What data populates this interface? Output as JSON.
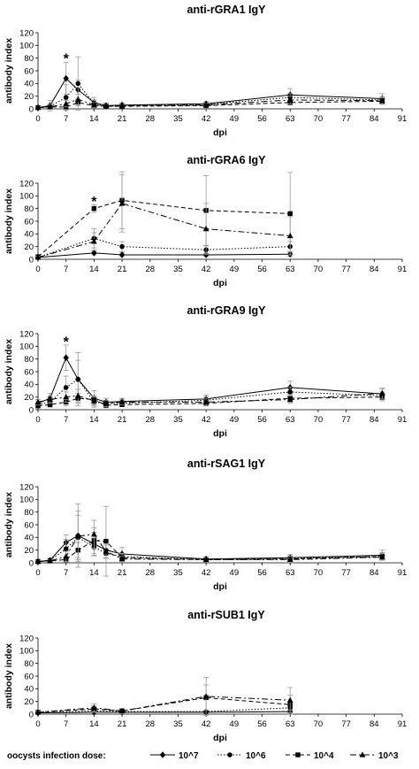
{
  "chart_data": [
    {
      "type": "line",
      "title": "anti-rGRA1 IgY",
      "xlabel": "dpi",
      "ylabel": "antibody index",
      "xlim": [
        0,
        91
      ],
      "ylim": [
        0,
        120
      ],
      "xticks": [
        0,
        7,
        14,
        21,
        28,
        35,
        42,
        49,
        56,
        63,
        70,
        77,
        84,
        91
      ],
      "yticks": [
        0,
        20,
        40,
        60,
        80,
        100,
        120
      ],
      "xtick_labels": [
        "0",
        "7",
        "14",
        "21",
        "28",
        "35",
        "42",
        "49",
        "56",
        "63",
        "70",
        "77",
        "84",
        "91"
      ],
      "ytick_labels": [
        "0",
        "20",
        "40",
        "60",
        "80",
        "100",
        "120"
      ],
      "annotations": [
        {
          "text": "*",
          "x": 7,
          "y": 80
        }
      ],
      "series": [
        {
          "name": "10^7",
          "marker": "diamond",
          "dash": "solid",
          "x": [
            0,
            3,
            7,
            10,
            14,
            17,
            21,
            42,
            63,
            86
          ],
          "y": [
            2,
            5,
            48,
            30,
            10,
            5,
            6,
            8,
            22,
            16
          ],
          "err": [
            2,
            8,
            25,
            15,
            8,
            4,
            3,
            3,
            10,
            8
          ]
        },
        {
          "name": "10^6",
          "marker": "circle",
          "dash": "dotted",
          "x": [
            0,
            3,
            7,
            10,
            14,
            17,
            21,
            42,
            63,
            86
          ],
          "y": [
            2,
            4,
            18,
            40,
            8,
            4,
            5,
            7,
            18,
            14
          ],
          "err": [
            2,
            4,
            20,
            42,
            6,
            3,
            3,
            3,
            6,
            5
          ]
        },
        {
          "name": "10^4",
          "marker": "square",
          "dash": "dashed",
          "x": [
            0,
            3,
            7,
            10,
            14,
            17,
            21,
            42,
            63,
            86
          ],
          "y": [
            2,
            3,
            3,
            10,
            5,
            4,
            4,
            5,
            10,
            12
          ],
          "err": [
            1,
            2,
            2,
            5,
            3,
            2,
            2,
            2,
            4,
            5
          ]
        },
        {
          "name": "10^3",
          "marker": "triangle",
          "dash": "dashdot",
          "x": [
            0,
            3,
            7,
            10,
            14,
            17,
            21,
            42,
            63,
            86
          ],
          "y": [
            2,
            3,
            8,
            15,
            6,
            5,
            5,
            6,
            14,
            13
          ],
          "err": [
            1,
            3,
            5,
            8,
            4,
            3,
            2,
            3,
            6,
            5
          ]
        }
      ]
    },
    {
      "type": "line",
      "title": "anti-rGRA6 IgY",
      "xlabel": "dpi",
      "ylabel": "antibody index",
      "xlim": [
        0,
        91
      ],
      "ylim": [
        0,
        120
      ],
      "xticks": [
        0,
        7,
        14,
        21,
        28,
        35,
        42,
        49,
        56,
        63,
        70,
        77,
        84,
        91
      ],
      "yticks": [
        0,
        20,
        40,
        60,
        80,
        100,
        120
      ],
      "xtick_labels": [
        "0",
        "7",
        "14",
        "21",
        "28",
        "35",
        "42",
        "49",
        "56",
        "63",
        "70",
        "77",
        "84",
        "91"
      ],
      "ytick_labels": [
        "0",
        "20",
        "40",
        "60",
        "80",
        "100",
        "120"
      ],
      "annotations": [
        {
          "text": "*",
          "x": 14,
          "y": 92
        }
      ],
      "series": [
        {
          "name": "10^7",
          "marker": "diamond",
          "dash": "solid",
          "x": [
            0,
            14,
            21,
            42,
            63
          ],
          "y": [
            3,
            10,
            7,
            7,
            8
          ],
          "err": [
            2,
            3,
            3,
            2,
            3
          ]
        },
        {
          "name": "10^6",
          "marker": "circle",
          "dash": "dotted",
          "x": [
            0,
            14,
            21,
            42,
            63
          ],
          "y": [
            3,
            33,
            20,
            15,
            20
          ],
          "err": [
            2,
            15,
            8,
            6,
            8
          ]
        },
        {
          "name": "10^4",
          "marker": "square",
          "dash": "dashed",
          "x": [
            0,
            14,
            21,
            42,
            63
          ],
          "y": [
            4,
            80,
            93,
            77,
            72
          ],
          "err": [
            2,
            6,
            45,
            55,
            65
          ]
        },
        {
          "name": "10^3",
          "marker": "triangle",
          "dash": "dashdot",
          "x": [
            0,
            14,
            21,
            42,
            63
          ],
          "y": [
            3,
            28,
            88,
            48,
            37
          ],
          "err": [
            2,
            14,
            45,
            40,
            30
          ]
        }
      ]
    },
    {
      "type": "line",
      "title": "anti-rGRA9 IgY",
      "xlabel": "dpi",
      "ylabel": "antibody index",
      "xlim": [
        0,
        91
      ],
      "ylim": [
        0,
        120
      ],
      "xticks": [
        0,
        7,
        14,
        21,
        28,
        35,
        42,
        49,
        56,
        63,
        70,
        77,
        84,
        91
      ],
      "yticks": [
        0,
        20,
        40,
        60,
        80,
        100,
        120
      ],
      "xtick_labels": [
        "0",
        "7",
        "14",
        "21",
        "28",
        "35",
        "42",
        "49",
        "56",
        "63",
        "70",
        "77",
        "84",
        "91"
      ],
      "ytick_labels": [
        "0",
        "20",
        "40",
        "60",
        "80",
        "100",
        "120"
      ],
      "annotations": [
        {
          "text": "*",
          "x": 7,
          "y": 108
        }
      ],
      "series": [
        {
          "name": "10^7",
          "marker": "diamond",
          "dash": "solid",
          "x": [
            0,
            3,
            7,
            10,
            14,
            17,
            21,
            42,
            63,
            86
          ],
          "y": [
            10,
            18,
            82,
            48,
            18,
            12,
            13,
            17,
            35,
            25
          ],
          "err": [
            4,
            8,
            20,
            42,
            12,
            6,
            5,
            6,
            10,
            8
          ]
        },
        {
          "name": "10^6",
          "marker": "circle",
          "dash": "dotted",
          "x": [
            0,
            3,
            7,
            10,
            14,
            17,
            21,
            42,
            63,
            86
          ],
          "y": [
            8,
            12,
            35,
            48,
            12,
            10,
            10,
            15,
            28,
            22
          ],
          "err": [
            3,
            6,
            18,
            30,
            8,
            5,
            4,
            5,
            8,
            6
          ]
        },
        {
          "name": "10^4",
          "marker": "square",
          "dash": "dashed",
          "x": [
            0,
            3,
            7,
            10,
            14,
            17,
            21,
            42,
            63,
            86
          ],
          "y": [
            6,
            8,
            12,
            18,
            16,
            7,
            8,
            10,
            18,
            20
          ],
          "err": [
            3,
            4,
            6,
            8,
            6,
            4,
            3,
            4,
            6,
            6
          ]
        },
        {
          "name": "10^3",
          "marker": "triangle",
          "dash": "dashdot",
          "x": [
            0,
            3,
            7,
            10,
            14,
            17,
            21,
            42,
            63,
            86
          ],
          "y": [
            12,
            16,
            20,
            22,
            14,
            10,
            12,
            12,
            16,
            26
          ],
          "err": [
            4,
            6,
            8,
            10,
            6,
            5,
            4,
            5,
            6,
            8
          ]
        }
      ]
    },
    {
      "type": "line",
      "title": "anti-rSAG1 IgY",
      "xlabel": "dpi",
      "ylabel": "antibody index",
      "xlim": [
        0,
        91
      ],
      "ylim": [
        0,
        120
      ],
      "xticks": [
        0,
        7,
        14,
        21,
        28,
        35,
        42,
        49,
        56,
        63,
        70,
        77,
        84,
        91
      ],
      "yticks": [
        0,
        20,
        40,
        60,
        80,
        100,
        120
      ],
      "xtick_labels": [
        "0",
        "7",
        "14",
        "21",
        "28",
        "35",
        "42",
        "49",
        "56",
        "63",
        "70",
        "77",
        "84",
        "91"
      ],
      "ytick_labels": [
        "0",
        "20",
        "40",
        "60",
        "80",
        "100",
        "120"
      ],
      "annotations": [],
      "series": [
        {
          "name": "10^7",
          "marker": "diamond",
          "dash": "solid",
          "x": [
            0,
            3,
            7,
            10,
            14,
            17,
            21,
            42,
            63,
            86
          ],
          "y": [
            2,
            4,
            32,
            43,
            30,
            20,
            14,
            6,
            8,
            12
          ],
          "err": [
            1,
            3,
            12,
            50,
            18,
            8,
            10,
            3,
            5,
            8
          ]
        },
        {
          "name": "10^6",
          "marker": "circle",
          "dash": "dotted",
          "x": [
            0,
            3,
            7,
            10,
            14,
            17,
            21,
            42,
            63,
            86
          ],
          "y": [
            2,
            4,
            22,
            40,
            25,
            15,
            10,
            5,
            7,
            10
          ],
          "err": [
            1,
            3,
            15,
            35,
            14,
            8,
            5,
            3,
            4,
            6
          ]
        },
        {
          "name": "10^4",
          "marker": "square",
          "dash": "dashed",
          "x": [
            0,
            3,
            7,
            10,
            14,
            17,
            21,
            42,
            63,
            86
          ],
          "y": [
            2,
            3,
            5,
            20,
            35,
            34,
            8,
            5,
            6,
            10
          ],
          "err": [
            1,
            2,
            4,
            12,
            20,
            55,
            6,
            3,
            4,
            5
          ]
        },
        {
          "name": "10^3",
          "marker": "triangle",
          "dash": "dashdot",
          "x": [
            0,
            3,
            7,
            10,
            14,
            17,
            21,
            42,
            63,
            86
          ],
          "y": [
            2,
            3,
            10,
            42,
            45,
            18,
            6,
            5,
            5,
            9
          ],
          "err": [
            1,
            2,
            8,
            40,
            22,
            10,
            4,
            3,
            3,
            5
          ]
        }
      ]
    },
    {
      "type": "line",
      "title": "anti-rSUB1 IgY",
      "xlabel": "dpi",
      "ylabel": "antibody index",
      "xlim": [
        0,
        91
      ],
      "ylim": [
        0,
        120
      ],
      "xticks": [
        0,
        7,
        14,
        21,
        28,
        35,
        42,
        49,
        56,
        63,
        70,
        77,
        84,
        91
      ],
      "yticks": [
        0,
        20,
        40,
        60,
        80,
        100,
        120
      ],
      "xtick_labels": [
        "0",
        "7",
        "14",
        "21",
        "28",
        "35",
        "42",
        "49",
        "56",
        "63",
        "70",
        "77",
        "84",
        "91"
      ],
      "ytick_labels": [
        "0",
        "20",
        "40",
        "60",
        "80",
        "100",
        "120"
      ],
      "annotations": [],
      "series": [
        {
          "name": "10^7",
          "marker": "diamond",
          "dash": "solid",
          "x": [
            0,
            14,
            21,
            42,
            63
          ],
          "y": [
            2,
            3,
            3,
            3,
            4
          ],
          "err": [
            1,
            2,
            2,
            2,
            2
          ]
        },
        {
          "name": "10^6",
          "marker": "circle",
          "dash": "dotted",
          "x": [
            0,
            14,
            21,
            42,
            63
          ],
          "y": [
            2,
            5,
            4,
            4,
            10
          ],
          "err": [
            1,
            3,
            2,
            2,
            4
          ]
        },
        {
          "name": "10^4",
          "marker": "square",
          "dash": "dashed",
          "x": [
            0,
            14,
            21,
            42,
            63
          ],
          "y": [
            3,
            8,
            5,
            26,
            15
          ],
          "err": [
            2,
            5,
            4,
            20,
            15
          ]
        },
        {
          "name": "10^3",
          "marker": "triangle",
          "dash": "dashdot",
          "x": [
            0,
            14,
            21,
            42,
            63
          ],
          "y": [
            3,
            10,
            5,
            28,
            22
          ],
          "err": [
            2,
            6,
            4,
            30,
            20
          ]
        }
      ]
    }
  ],
  "legend": {
    "title": "oocysts infection dose:",
    "placement": "bottom",
    "entries": [
      {
        "label": "10^7",
        "marker": "diamond",
        "dash": "solid"
      },
      {
        "label": "10^6",
        "marker": "circle",
        "dash": "dotted"
      },
      {
        "label": "10^4",
        "marker": "square",
        "dash": "dashed"
      },
      {
        "label": "10^3",
        "marker": "triangle",
        "dash": "dashdot"
      }
    ]
  }
}
